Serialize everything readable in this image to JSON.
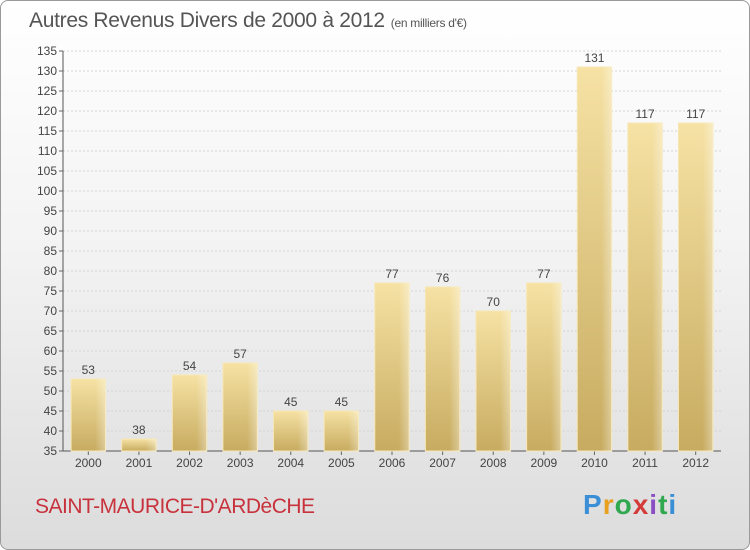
{
  "header": {
    "title": "Autres Revenus Divers de 2000 à 2012",
    "subtitle": "(en milliers d'€)"
  },
  "footer": {
    "place": "SAINT-MAURICE-D'ARDèCHE",
    "logo_text": "Proxiti"
  },
  "colors": {
    "bar_light": "#f3dc9a",
    "bar_dark": "#c8ad62",
    "grid": "#d0d0d0",
    "title": "#555555",
    "place": "#c8323c"
  },
  "chart_data": {
    "type": "bar",
    "title": "Autres Revenus Divers de 2000 à 2012",
    "categories": [
      "2000",
      "2001",
      "2002",
      "2003",
      "2004",
      "2005",
      "2006",
      "2007",
      "2008",
      "2009",
      "2010",
      "2011",
      "2012"
    ],
    "values": [
      53,
      38,
      54,
      57,
      45,
      45,
      77,
      76,
      70,
      77,
      131,
      117,
      117
    ],
    "xlabel": "",
    "ylabel": "",
    "ylim": [
      35,
      135
    ],
    "yticks": [
      35,
      40,
      45,
      50,
      55,
      60,
      65,
      70,
      75,
      80,
      85,
      90,
      95,
      100,
      105,
      110,
      115,
      120,
      125,
      130,
      135
    ],
    "grid": true,
    "data_labels": true
  }
}
